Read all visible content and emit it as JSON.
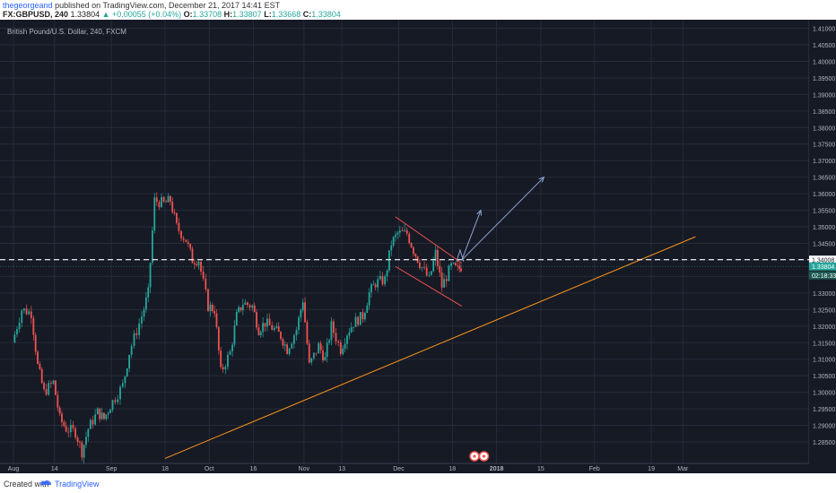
{
  "header": {
    "author": "thegeorgeand",
    "published_text": "published on TradingView.com, December 21, 2017 14:41 EST",
    "symbol": "FX:GBPUSD, 240",
    "last": "1.33804",
    "change": "▲ +0.00055 (+0.04%)",
    "o_label": "O:",
    "o_value": "1.33708",
    "h_label": "H:",
    "h_value": "1.33807",
    "l_label": "L:",
    "l_value": "1.33668",
    "c_label": "C:",
    "c_value": "1.33804"
  },
  "footer": {
    "created_label": "Created with",
    "brand": "TradingView"
  },
  "colors": {
    "background": "#161a25",
    "grid": "#262b3a",
    "text": "#b2b5be",
    "up": "#26a69a",
    "down": "#ef5350",
    "channel": "#e5504f",
    "trendline": "#f7931a",
    "projection": "#8fa5d0",
    "price_tag": "#26a69a"
  },
  "chart_data": {
    "type": "candlestick",
    "title": "British Pound/U.S. Dollar, 240, FXCM",
    "ylim": [
      1.28,
      1.41
    ],
    "y_ticks": [
      "1.41000",
      "1.40500",
      "1.40000",
      "1.39500",
      "1.39000",
      "1.38500",
      "1.38000",
      "1.37500",
      "1.37000",
      "1.36500",
      "1.36000",
      "1.35500",
      "1.35000",
      "1.34500",
      "1.34000",
      "1.33500",
      "1.33000",
      "1.32500",
      "1.32000",
      "1.31500",
      "1.31000",
      "1.30500",
      "1.30000",
      "1.29500",
      "1.29000",
      "1.28500"
    ],
    "x_ticks": [
      "Aug",
      "14",
      "Sep",
      "18",
      "Oct",
      "16",
      "Nov",
      "13",
      "Dec",
      "18",
      "2018",
      "15",
      "Feb",
      "19",
      "Mar"
    ],
    "series_close": [
      [
        "2017-08-01",
        1.315
      ],
      [
        "2017-08-04",
        1.325
      ],
      [
        "2017-08-07",
        1.324
      ],
      [
        "2017-08-09",
        1.308
      ],
      [
        "2017-08-11",
        1.3
      ],
      [
        "2017-08-14",
        1.303
      ],
      [
        "2017-08-16",
        1.292
      ],
      [
        "2017-08-18",
        1.289
      ],
      [
        "2017-08-21",
        1.288
      ],
      [
        "2017-08-23",
        1.282
      ],
      [
        "2017-08-25",
        1.289
      ],
      [
        "2017-08-28",
        1.294
      ],
      [
        "2017-08-30",
        1.292
      ],
      [
        "2017-09-01",
        1.296
      ],
      [
        "2017-09-05",
        1.302
      ],
      [
        "2017-09-07",
        1.312
      ],
      [
        "2017-09-11",
        1.323
      ],
      [
        "2017-09-13",
        1.33
      ],
      [
        "2017-09-15",
        1.358
      ],
      [
        "2017-09-18",
        1.357
      ],
      [
        "2017-09-20",
        1.358
      ],
      [
        "2017-09-22",
        1.35
      ],
      [
        "2017-09-25",
        1.346
      ],
      [
        "2017-09-27",
        1.34
      ],
      [
        "2017-09-29",
        1.34
      ],
      [
        "2017-10-02",
        1.326
      ],
      [
        "2017-10-04",
        1.325
      ],
      [
        "2017-10-06",
        1.306
      ],
      [
        "2017-10-09",
        1.312
      ],
      [
        "2017-10-11",
        1.323
      ],
      [
        "2017-10-13",
        1.327
      ],
      [
        "2017-10-16",
        1.326
      ],
      [
        "2017-10-18",
        1.319
      ],
      [
        "2017-10-20",
        1.321
      ],
      [
        "2017-10-23",
        1.319
      ],
      [
        "2017-10-25",
        1.317
      ],
      [
        "2017-10-27",
        1.313
      ],
      [
        "2017-10-30",
        1.319
      ],
      [
        "2017-11-01",
        1.328
      ],
      [
        "2017-11-03",
        1.308
      ],
      [
        "2017-11-06",
        1.314
      ],
      [
        "2017-11-08",
        1.31
      ],
      [
        "2017-11-10",
        1.32
      ],
      [
        "2017-11-13",
        1.313
      ],
      [
        "2017-11-15",
        1.318
      ],
      [
        "2017-11-17",
        1.321
      ],
      [
        "2017-11-20",
        1.323
      ],
      [
        "2017-11-22",
        1.33
      ],
      [
        "2017-11-24",
        1.333
      ],
      [
        "2017-11-27",
        1.334
      ],
      [
        "2017-11-29",
        1.345
      ],
      [
        "2017-12-01",
        1.348
      ],
      [
        "2017-12-04",
        1.348
      ],
      [
        "2017-12-06",
        1.343
      ],
      [
        "2017-12-08",
        1.339
      ],
      [
        "2017-12-11",
        1.334
      ],
      [
        "2017-12-13",
        1.342
      ],
      [
        "2017-12-15",
        1.332
      ],
      [
        "2017-12-18",
        1.338
      ],
      [
        "2017-12-20",
        1.337
      ],
      [
        "2017-12-21",
        1.338
      ]
    ],
    "annotations": {
      "current_price": "1.33804",
      "countdown": "02:18:33",
      "horizontal_level": "1.34008",
      "horizontal_level_value": 1.34008,
      "trendline": [
        [
          "2017-09-18",
          1.28
        ],
        [
          "2018-03-05",
          1.347
        ]
      ],
      "channel_upper": [
        [
          "2017-11-30",
          1.353
        ],
        [
          "2017-12-21",
          1.339
        ]
      ],
      "channel_lower": [
        [
          "2017-11-30",
          1.338
        ],
        [
          "2017-12-21",
          1.326
        ]
      ],
      "projection_paths": [
        [
          [
            "2017-12-21",
            1.34
          ],
          [
            "2017-12-27",
            1.355
          ]
        ],
        [
          [
            "2017-12-21",
            1.34
          ],
          [
            "2018-01-16",
            1.365
          ]
        ]
      ]
    }
  }
}
